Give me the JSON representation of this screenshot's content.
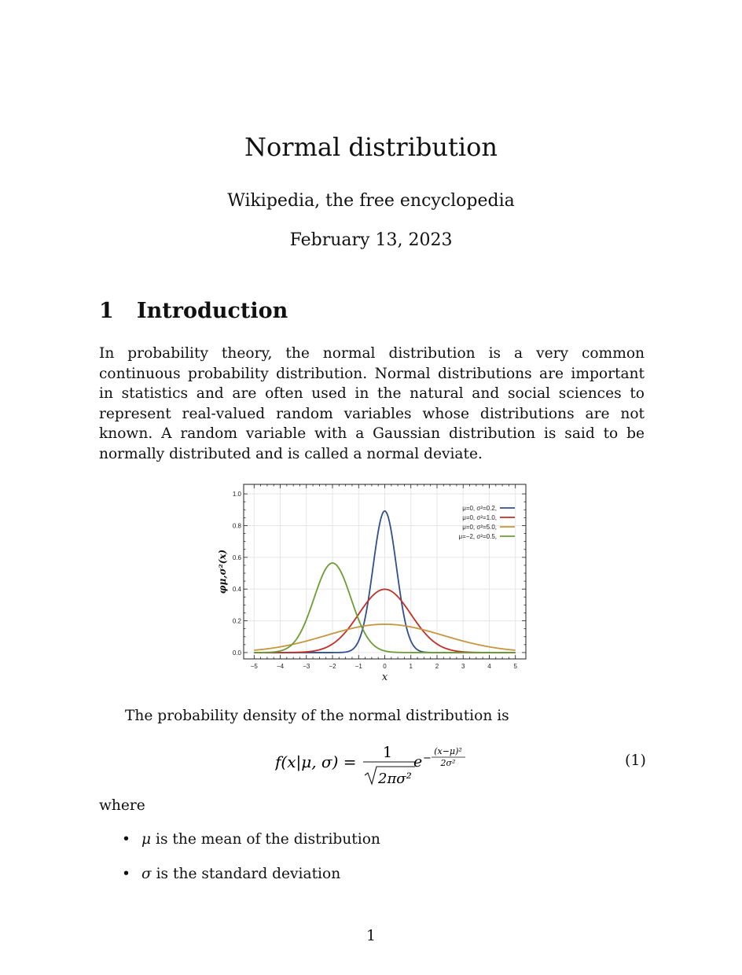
{
  "document": {
    "title": "Normal distribution",
    "author": "Wikipedia, the free encyclopedia",
    "date": "February 13, 2023",
    "section_number": "1",
    "section_title": "Introduction",
    "intro_paragraph": "In probability theory, the normal distribution is a very common continuous probability distribution.  Normal distributions are important in statistics and are often used in the natural and social sciences to represent real-valued random variables whose distributions are not known.  A random variable with a Gaussian distribution is said to be normally distributed and is called a normal deviate.",
    "pdf_sentence": "The probability density of the normal distribution is",
    "equation_number": "(1)",
    "where_label": "where",
    "bullets": [
      {
        "symbol": "μ",
        "text": " is the mean of the distribution"
      },
      {
        "symbol": "σ",
        "text": " is the standard deviation"
      }
    ],
    "page_number": "1"
  },
  "equation": {
    "lhs": "f(x|μ, σ) =",
    "numerator": "1",
    "denominator": "2πσ²",
    "base": "e",
    "exp_numerator": "(x−μ)²",
    "exp_denominator": "2σ²"
  },
  "chart_data": {
    "type": "line",
    "title": "",
    "xlabel": "x",
    "ylabel": "φμ,σ²(x)",
    "xlim": [
      -5.4,
      5.4
    ],
    "ylim": [
      -0.04,
      1.06
    ],
    "xticks": [
      "−5",
      "−4",
      "−3",
      "−2",
      "−1",
      "0",
      "1",
      "2",
      "3",
      "4",
      "5"
    ],
    "yticks": [
      "0.0",
      "0.2",
      "0.4",
      "0.6",
      "0.8",
      "1.0"
    ],
    "grid": true,
    "legend_position": "top-right",
    "series": [
      {
        "name": "μ=0,   σ²=0.2,",
        "mu": 0,
        "variance": 0.2,
        "color": "#2f4f8f",
        "x": [
          -5,
          -4,
          -3,
          -2,
          -1.5,
          -1,
          -0.75,
          -0.5,
          -0.25,
          0,
          0.25,
          0.5,
          0.75,
          1,
          1.5,
          2,
          3,
          4,
          5
        ],
        "y": [
          0,
          0,
          0,
          0,
          0,
          0.025,
          0.218,
          0.477,
          0.761,
          0.892,
          0.761,
          0.477,
          0.218,
          0.025,
          0,
          0,
          0,
          0,
          0
        ]
      },
      {
        "name": "μ=0,   σ²=1.0,",
        "mu": 0,
        "variance": 1.0,
        "color": "#c03028",
        "x": [
          -5,
          -4,
          -3,
          -2,
          -1.5,
          -1,
          -0.5,
          0,
          0.5,
          1,
          1.5,
          2,
          3,
          4,
          5
        ],
        "y": [
          0,
          0.0001,
          0.004,
          0.054,
          0.13,
          0.242,
          0.352,
          0.399,
          0.352,
          0.242,
          0.13,
          0.054,
          0.004,
          0.0001,
          0
        ]
      },
      {
        "name": "μ=0,   σ²=5.0,",
        "mu": 0,
        "variance": 5.0,
        "color": "#c8963c",
        "x": [
          -5,
          -4,
          -3,
          -2,
          -1,
          0,
          1,
          2,
          3,
          4,
          5
        ],
        "y": [
          0.015,
          0.036,
          0.073,
          0.12,
          0.161,
          0.178,
          0.161,
          0.12,
          0.073,
          0.036,
          0.015
        ]
      },
      {
        "name": "μ=−2, σ²=0.5,",
        "mu": -2,
        "variance": 0.5,
        "color": "#6a9e34",
        "x": [
          -5,
          -4,
          -3.5,
          -3,
          -2.5,
          -2,
          -1.5,
          -1,
          -0.5,
          0,
          1,
          2,
          3,
          4,
          5
        ],
        "y": [
          0,
          0.0001,
          0.059,
          0.208,
          0.439,
          0.564,
          0.439,
          0.208,
          0.059,
          0.01,
          0,
          0,
          0,
          0,
          0
        ]
      }
    ]
  }
}
